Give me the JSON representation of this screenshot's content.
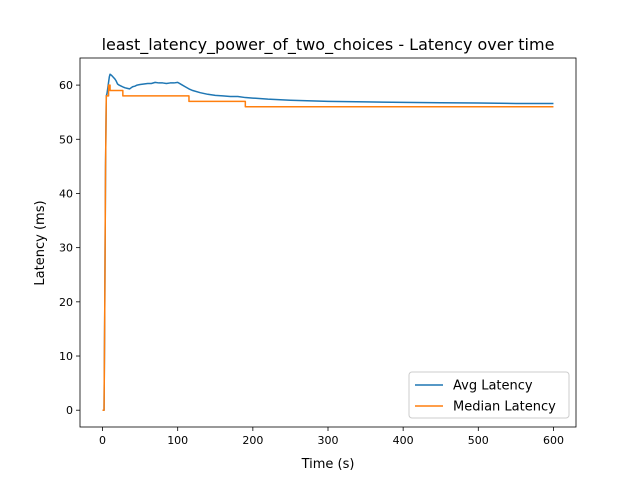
{
  "chart_data": {
    "type": "line",
    "title": "least_latency_power_of_two_choices - Latency over time",
    "xlabel": "Time (s)",
    "ylabel": "Latency (ms)",
    "xlim": [
      -30,
      630
    ],
    "ylim": [
      -3.1,
      65
    ],
    "xticks": [
      0,
      100,
      200,
      300,
      400,
      500,
      600
    ],
    "yticks": [
      0,
      10,
      20,
      30,
      40,
      50,
      60
    ],
    "grid": false,
    "legend_position": "lower-right",
    "series": [
      {
        "name": "Avg Latency",
        "color": "#1f77b4",
        "points": [
          [
            0,
            0
          ],
          [
            2,
            0
          ],
          [
            3,
            20
          ],
          [
            4,
            45
          ],
          [
            5,
            58
          ],
          [
            6,
            58.5
          ],
          [
            7,
            59.5
          ],
          [
            8,
            60.5
          ],
          [
            9,
            61.5
          ],
          [
            10,
            62
          ],
          [
            12,
            61.8
          ],
          [
            14,
            61.5
          ],
          [
            16,
            61.2
          ],
          [
            18,
            60.8
          ],
          [
            20,
            60.2
          ],
          [
            22,
            60
          ],
          [
            25,
            59.8
          ],
          [
            28,
            59.6
          ],
          [
            30,
            59.5
          ],
          [
            33,
            59.4
          ],
          [
            36,
            59.3
          ],
          [
            38,
            59.5
          ],
          [
            40,
            59.7
          ],
          [
            43,
            59.8
          ],
          [
            46,
            60
          ],
          [
            50,
            60.1
          ],
          [
            55,
            60.2
          ],
          [
            60,
            60.3
          ],
          [
            65,
            60.3
          ],
          [
            70,
            60.5
          ],
          [
            75,
            60.4
          ],
          [
            80,
            60.4
          ],
          [
            85,
            60.3
          ],
          [
            90,
            60.4
          ],
          [
            95,
            60.4
          ],
          [
            100,
            60.5
          ],
          [
            105,
            60.1
          ],
          [
            110,
            59.7
          ],
          [
            115,
            59.3
          ],
          [
            120,
            59
          ],
          [
            130,
            58.6
          ],
          [
            140,
            58.3
          ],
          [
            150,
            58.1
          ],
          [
            160,
            58
          ],
          [
            170,
            57.9
          ],
          [
            180,
            57.9
          ],
          [
            190,
            57.7
          ],
          [
            200,
            57.6
          ],
          [
            220,
            57.4
          ],
          [
            250,
            57.2
          ],
          [
            300,
            57
          ],
          [
            350,
            56.9
          ],
          [
            400,
            56.8
          ],
          [
            450,
            56.75
          ],
          [
            500,
            56.7
          ],
          [
            550,
            56.6
          ],
          [
            600,
            56.6
          ]
        ]
      },
      {
        "name": "Median Latency",
        "color": "#ff7f0e",
        "points": [
          [
            0,
            0
          ],
          [
            2,
            0
          ],
          [
            3,
            20
          ],
          [
            4,
            45
          ],
          [
            5,
            58
          ],
          [
            8,
            58
          ],
          [
            8,
            60
          ],
          [
            10,
            60
          ],
          [
            10,
            59
          ],
          [
            25,
            59
          ],
          [
            25,
            59
          ],
          [
            27,
            59
          ],
          [
            27,
            58
          ],
          [
            115,
            58
          ],
          [
            115,
            57
          ],
          [
            190,
            57
          ],
          [
            190,
            56
          ],
          [
            600,
            56
          ]
        ]
      }
    ]
  }
}
